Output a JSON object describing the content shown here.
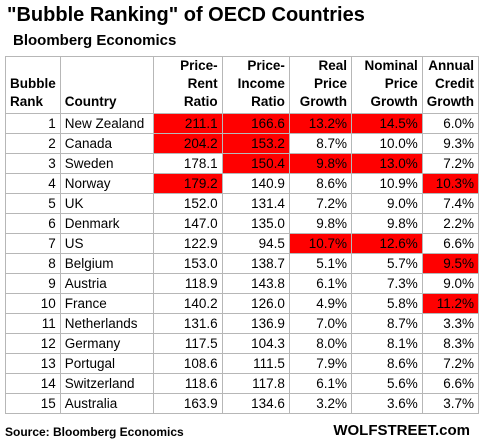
{
  "title": "\"Bubble Ranking\" of OECD Countries",
  "subtitle": "Bloomberg Economics",
  "source": "Source: Bloomberg Economics",
  "brand": "WOLFSTREET.com",
  "highlight_color": "#ff0000",
  "chart_data": {
    "type": "table",
    "columns": [
      {
        "key": "rank",
        "label_lines": [
          "Bubble",
          "Rank"
        ]
      },
      {
        "key": "country",
        "label_lines": [
          "Country"
        ]
      },
      {
        "key": "price_rent",
        "label_lines": [
          "Price-",
          "Rent",
          "Ratio"
        ]
      },
      {
        "key": "price_income",
        "label_lines": [
          "Price-",
          "Income",
          "Ratio"
        ]
      },
      {
        "key": "real_price_growth",
        "label_lines": [
          "Real",
          "Price",
          "Growth"
        ]
      },
      {
        "key": "nominal_price_growth",
        "label_lines": [
          "Nominal",
          "Price",
          "Growth"
        ]
      },
      {
        "key": "credit_growth",
        "label_lines": [
          "Annual",
          "Credit",
          "Growth"
        ]
      }
    ],
    "rows": [
      {
        "rank": "1",
        "country": "New Zealand",
        "price_rent": "211.1",
        "price_income": "166.6",
        "real_price_growth": "13.2%",
        "nominal_price_growth": "14.5%",
        "credit_growth": "6.0%",
        "highlighted": [
          "price_rent",
          "price_income",
          "real_price_growth",
          "nominal_price_growth"
        ]
      },
      {
        "rank": "2",
        "country": "Canada",
        "price_rent": "204.2",
        "price_income": "153.2",
        "real_price_growth": "8.7%",
        "nominal_price_growth": "10.0%",
        "credit_growth": "9.3%",
        "highlighted": [
          "price_rent",
          "price_income"
        ]
      },
      {
        "rank": "3",
        "country": "Sweden",
        "price_rent": "178.1",
        "price_income": "150.4",
        "real_price_growth": "9.8%",
        "nominal_price_growth": "13.0%",
        "credit_growth": "7.2%",
        "highlighted": [
          "price_income",
          "real_price_growth",
          "nominal_price_growth"
        ]
      },
      {
        "rank": "4",
        "country": "Norway",
        "price_rent": "179.2",
        "price_income": "140.9",
        "real_price_growth": "8.6%",
        "nominal_price_growth": "10.9%",
        "credit_growth": "10.3%",
        "highlighted": [
          "price_rent",
          "credit_growth"
        ]
      },
      {
        "rank": "5",
        "country": "UK",
        "price_rent": "152.0",
        "price_income": "131.4",
        "real_price_growth": "7.2%",
        "nominal_price_growth": "9.0%",
        "credit_growth": "7.4%",
        "highlighted": []
      },
      {
        "rank": "6",
        "country": "Denmark",
        "price_rent": "147.0",
        "price_income": "135.0",
        "real_price_growth": "9.8%",
        "nominal_price_growth": "9.8%",
        "credit_growth": "2.2%",
        "highlighted": []
      },
      {
        "rank": "7",
        "country": "US",
        "price_rent": "122.9",
        "price_income": "94.5",
        "real_price_growth": "10.7%",
        "nominal_price_growth": "12.6%",
        "credit_growth": "6.6%",
        "highlighted": [
          "real_price_growth",
          "nominal_price_growth"
        ]
      },
      {
        "rank": "8",
        "country": "Belgium",
        "price_rent": "153.0",
        "price_income": "138.7",
        "real_price_growth": "5.1%",
        "nominal_price_growth": "5.7%",
        "credit_growth": "9.5%",
        "highlighted": [
          "credit_growth"
        ]
      },
      {
        "rank": "9",
        "country": "Austria",
        "price_rent": "118.9",
        "price_income": "143.8",
        "real_price_growth": "6.1%",
        "nominal_price_growth": "7.3%",
        "credit_growth": "9.0%",
        "highlighted": []
      },
      {
        "rank": "10",
        "country": "France",
        "price_rent": "140.2",
        "price_income": "126.0",
        "real_price_growth": "4.9%",
        "nominal_price_growth": "5.8%",
        "credit_growth": "11.2%",
        "highlighted": [
          "credit_growth"
        ]
      },
      {
        "rank": "11",
        "country": "Netherlands",
        "price_rent": "131.6",
        "price_income": "136.9",
        "real_price_growth": "7.0%",
        "nominal_price_growth": "8.7%",
        "credit_growth": "3.3%",
        "highlighted": []
      },
      {
        "rank": "12",
        "country": "Germany",
        "price_rent": "117.5",
        "price_income": "104.3",
        "real_price_growth": "8.0%",
        "nominal_price_growth": "8.1%",
        "credit_growth": "8.3%",
        "highlighted": []
      },
      {
        "rank": "13",
        "country": "Portugal",
        "price_rent": "108.6",
        "price_income": "111.5",
        "real_price_growth": "7.9%",
        "nominal_price_growth": "8.6%",
        "credit_growth": "7.2%",
        "highlighted": []
      },
      {
        "rank": "14",
        "country": "Switzerland",
        "price_rent": "118.6",
        "price_income": "117.8",
        "real_price_growth": "6.1%",
        "nominal_price_growth": "5.6%",
        "credit_growth": "6.6%",
        "highlighted": []
      },
      {
        "rank": "15",
        "country": "Australia",
        "price_rent": "163.9",
        "price_income": "134.6",
        "real_price_growth": "3.2%",
        "nominal_price_growth": "3.6%",
        "credit_growth": "3.7%",
        "highlighted": []
      }
    ]
  }
}
